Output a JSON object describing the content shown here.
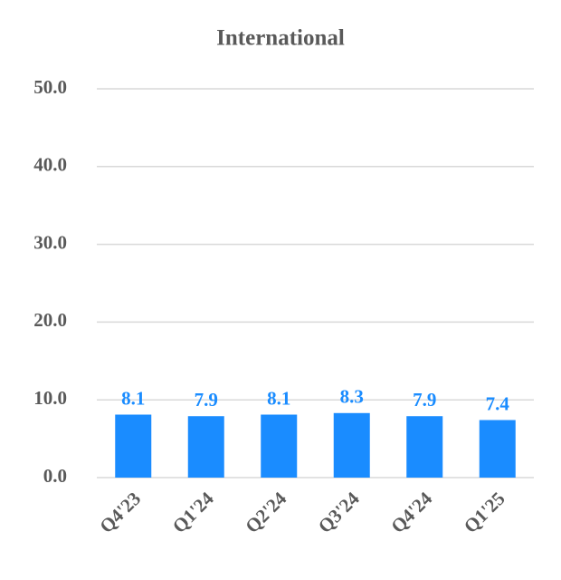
{
  "chart_data": {
    "type": "bar",
    "title": "International",
    "categories": [
      "Q4'23",
      "Q1'24",
      "Q2'24",
      "Q3'24",
      "Q4'24",
      "Q1'25"
    ],
    "values": [
      8.1,
      7.9,
      8.1,
      8.3,
      7.9,
      7.4
    ],
    "color": "#1a8cff",
    "ylim": [
      0,
      50
    ],
    "yticks": [
      {
        "value": 0,
        "label": "0.0"
      },
      {
        "value": 10,
        "label": "10.0"
      },
      {
        "value": 20,
        "label": "20.0"
      },
      {
        "value": 30,
        "label": "30.0"
      },
      {
        "value": 40,
        "label": "40.0"
      },
      {
        "value": 50,
        "label": "50.0"
      }
    ],
    "grid": true
  }
}
